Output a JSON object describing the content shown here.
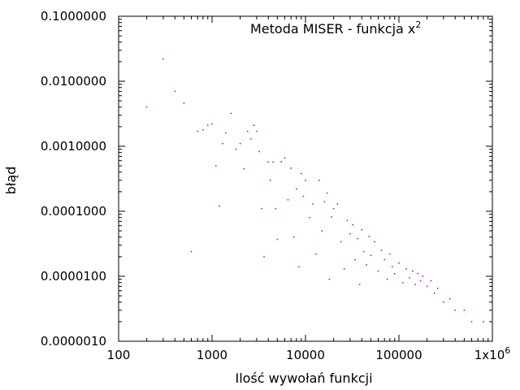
{
  "chart_data": {
    "type": "scatter",
    "title": "Metoda MISER - funkcja x",
    "title_superscript": "2",
    "xlabel": "Ilość wywołań funkcji",
    "ylabel": "błąd",
    "xscale": "log",
    "yscale": "log",
    "xlim": [
      100,
      1000000
    ],
    "ylim": [
      1e-06,
      0.1
    ],
    "xticks": [
      {
        "value": 100,
        "label": "100"
      },
      {
        "value": 1000,
        "label": "1000"
      },
      {
        "value": 10000,
        "label": "10000"
      },
      {
        "value": 100000,
        "label": "100000"
      },
      {
        "value": 1000000,
        "label": "1x10",
        "superscript": "6"
      }
    ],
    "yticks": [
      {
        "value": 0.1,
        "label": "0.1000000"
      },
      {
        "value": 0.01,
        "label": "0.0100000"
      },
      {
        "value": 0.001,
        "label": "0.0010000"
      },
      {
        "value": 0.0001,
        "label": "0.0001000"
      },
      {
        "value": 1e-05,
        "label": "0.0000100"
      },
      {
        "value": 1e-06,
        "label": "0.0000010"
      }
    ],
    "grid": false,
    "legend": "none",
    "point_color": "#9400d3",
    "series": [
      {
        "values": [
          [
            200,
            0.004
          ],
          [
            300,
            0.022
          ],
          [
            400,
            0.007
          ],
          [
            500,
            0.0046
          ],
          [
            600,
            2.4e-05
          ],
          [
            700,
            0.0017
          ],
          [
            800,
            0.0018
          ],
          [
            900,
            0.0021
          ],
          [
            1000,
            0.0022
          ],
          [
            1100,
            0.0005
          ],
          [
            1200,
            0.00012
          ],
          [
            1300,
            0.0011
          ],
          [
            1400,
            0.0016
          ],
          [
            1600,
            0.0032
          ],
          [
            1800,
            0.0009
          ],
          [
            2000,
            0.0011
          ],
          [
            2200,
            0.00045
          ],
          [
            2400,
            0.0017
          ],
          [
            2600,
            0.0013
          ],
          [
            2800,
            0.0021
          ],
          [
            3000,
            0.0017
          ],
          [
            3200,
            0.00083
          ],
          [
            3400,
            0.00011
          ],
          [
            3600,
            2e-05
          ],
          [
            4000,
            0.00057
          ],
          [
            4200,
            0.0003
          ],
          [
            4500,
            0.00057
          ],
          [
            4800,
            0.00011
          ],
          [
            5000,
            3.7e-05
          ],
          [
            5500,
            0.00058
          ],
          [
            6000,
            0.00066
          ],
          [
            6500,
            0.00015
          ],
          [
            7000,
            0.00046
          ],
          [
            7500,
            4e-05
          ],
          [
            8000,
            0.00022
          ],
          [
            8500,
            1.4e-05
          ],
          [
            9000,
            0.00038
          ],
          [
            9500,
            0.00017
          ],
          [
            10000,
            0.0003
          ],
          [
            11000,
            8e-05
          ],
          [
            12000,
            0.00013
          ],
          [
            13000,
            2.2e-05
          ],
          [
            14000,
            0.0003
          ],
          [
            15000,
            5e-05
          ],
          [
            16000,
            0.00014
          ],
          [
            17000,
            0.00019
          ],
          [
            18000,
            9e-06
          ],
          [
            19000,
            8.2e-05
          ],
          [
            20000,
            0.00011
          ],
          [
            22000,
            0.00013
          ],
          [
            24000,
            3.4e-05
          ],
          [
            26000,
            1.3e-05
          ],
          [
            28000,
            7.2e-05
          ],
          [
            30000,
            4.5e-05
          ],
          [
            32000,
            6.2e-05
          ],
          [
            34000,
            1.8e-05
          ],
          [
            36000,
            3.8e-05
          ],
          [
            38000,
            7.5e-06
          ],
          [
            40000,
            5.2e-05
          ],
          [
            42000,
            2.4e-05
          ],
          [
            45000,
            1.5e-05
          ],
          [
            48000,
            4.1e-05
          ],
          [
            50000,
            2.1e-05
          ],
          [
            55000,
            3.4e-05
          ],
          [
            60000,
            1.2e-05
          ],
          [
            65000,
            2.5e-05
          ],
          [
            70000,
            1.8e-05
          ],
          [
            75000,
            9e-06
          ],
          [
            80000,
            2.2e-05
          ],
          [
            85000,
            1.4e-05
          ],
          [
            90000,
            1.1e-05
          ],
          [
            100000,
            1.6e-05
          ],
          [
            110000,
            8e-06
          ],
          [
            120000,
            1.3e-05
          ],
          [
            130000,
            9.5e-06
          ],
          [
            140000,
            1.2e-05
          ],
          [
            150000,
            7.5e-06
          ],
          [
            160000,
            1.1e-05
          ],
          [
            170000,
            8.5e-06
          ],
          [
            180000,
            1e-05
          ],
          [
            200000,
            7e-06
          ],
          [
            220000,
            8.5e-06
          ],
          [
            240000,
            5.5e-06
          ],
          [
            260000,
            6.5e-06
          ],
          [
            300000,
            4e-06
          ],
          [
            350000,
            4.5e-06
          ],
          [
            400000,
            3e-06
          ],
          [
            500000,
            3e-06
          ],
          [
            600000,
            2e-06
          ],
          [
            800000,
            2e-06
          ],
          [
            1000000,
            2e-06
          ]
        ]
      }
    ]
  }
}
